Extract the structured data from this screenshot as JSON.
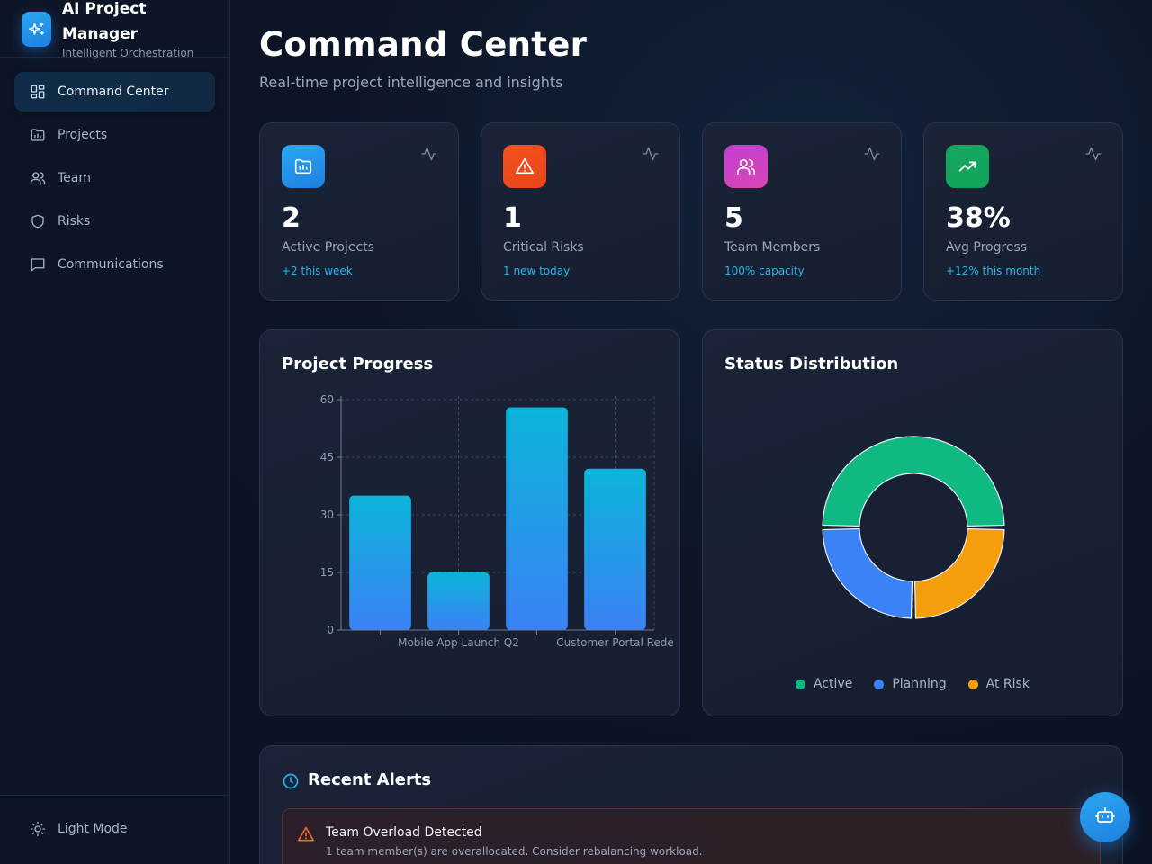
{
  "brand": {
    "title": "AI Project Manager",
    "subtitle": "Intelligent Orchestration",
    "icon": "sparkles-icon"
  },
  "sidebar": {
    "items": [
      {
        "label": "Command Center",
        "icon": "grid-icon",
        "active": true
      },
      {
        "label": "Projects",
        "icon": "folder-icon",
        "active": false
      },
      {
        "label": "Team",
        "icon": "users-icon",
        "active": false
      },
      {
        "label": "Risks",
        "icon": "shield-icon",
        "active": false
      },
      {
        "label": "Communications",
        "icon": "message-icon",
        "active": false
      }
    ],
    "light_mode_label": "Light Mode"
  },
  "header": {
    "title": "Command Center",
    "subtitle": "Real-time project intelligence and insights"
  },
  "stats": [
    {
      "value": "2",
      "label": "Active Projects",
      "delta": "+2 this week",
      "icon": "folder-chart-icon",
      "color": "#1e88e5"
    },
    {
      "value": "1",
      "label": "Critical Risks",
      "delta": "1 new today",
      "icon": "alert-triangle-icon",
      "color": "#f4511e"
    },
    {
      "value": "5",
      "label": "Team Members",
      "delta": "100% capacity",
      "icon": "users-icon",
      "color": "#c13fd1"
    },
    {
      "value": "38%",
      "label": "Avg Progress",
      "delta": "+12% this month",
      "icon": "trending-up-icon",
      "color": "#16a860"
    }
  ],
  "progress_panel": {
    "title": "Project Progress"
  },
  "status_panel": {
    "title": "Status Distribution",
    "legend": [
      {
        "label": "Active",
        "color": "#10b981"
      },
      {
        "label": "Planning",
        "color": "#3b82f6"
      },
      {
        "label": "At Risk",
        "color": "#f59e0b"
      }
    ]
  },
  "alerts": {
    "title": "Recent Alerts",
    "items": [
      {
        "title": "Team Overload Detected",
        "description": "1 team member(s) are overallocated. Consider rebalancing workload.",
        "icon": "alert-triangle-icon"
      }
    ]
  },
  "chart_data": [
    {
      "type": "bar",
      "title": "Project Progress",
      "categories": [
        "",
        "Mobile App Launch Q2",
        "",
        "Customer Portal Rede"
      ],
      "values": [
        35,
        15,
        58,
        42
      ],
      "ylim": [
        0,
        60
      ],
      "yticks": [
        0,
        15,
        30,
        45,
        60
      ],
      "grid": true,
      "colors": [
        "#0bb4d9",
        "#3b82f6"
      ]
    },
    {
      "type": "pie",
      "title": "Status Distribution",
      "categories": [
        "Active",
        "Planning",
        "At Risk"
      ],
      "values": [
        2,
        1,
        1
      ],
      "colors": [
        "#10b981",
        "#3b82f6",
        "#f59e0b"
      ],
      "legend": "bottom"
    }
  ]
}
